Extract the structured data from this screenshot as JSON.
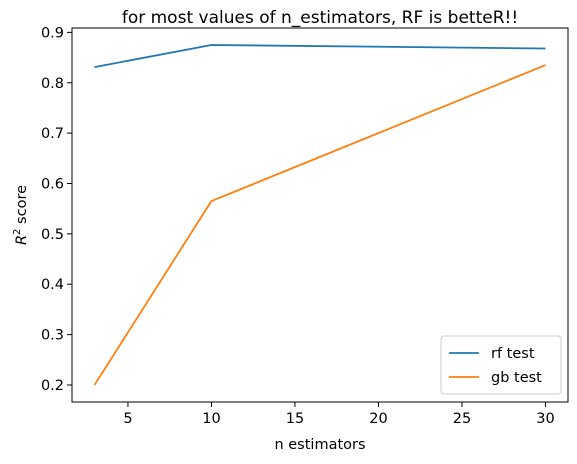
{
  "chart_data": {
    "type": "line",
    "title": "for most values of n_estimators, RF is betteR!!",
    "xlabel": "n estimators",
    "ylabel_main": "R",
    "ylabel_sup": "2",
    "ylabel_rest": " score",
    "xlim": [
      1.65,
      31.35
    ],
    "ylim": [
      0.1662,
      0.9087
    ],
    "xticks": [
      5,
      10,
      15,
      20,
      25,
      30
    ],
    "yticks": [
      0.2,
      0.3,
      0.4,
      0.5,
      0.6,
      0.7,
      0.8,
      0.9
    ],
    "grid": false,
    "legend_position": "lower-right",
    "x": [
      3,
      10,
      30
    ],
    "series": [
      {
        "name": "rf test",
        "color": "#1f77b4",
        "values": [
          0.831,
          0.875,
          0.868
        ]
      },
      {
        "name": "gb test",
        "color": "#ff7f0e",
        "values": [
          0.2,
          0.565,
          0.835
        ]
      }
    ]
  }
}
